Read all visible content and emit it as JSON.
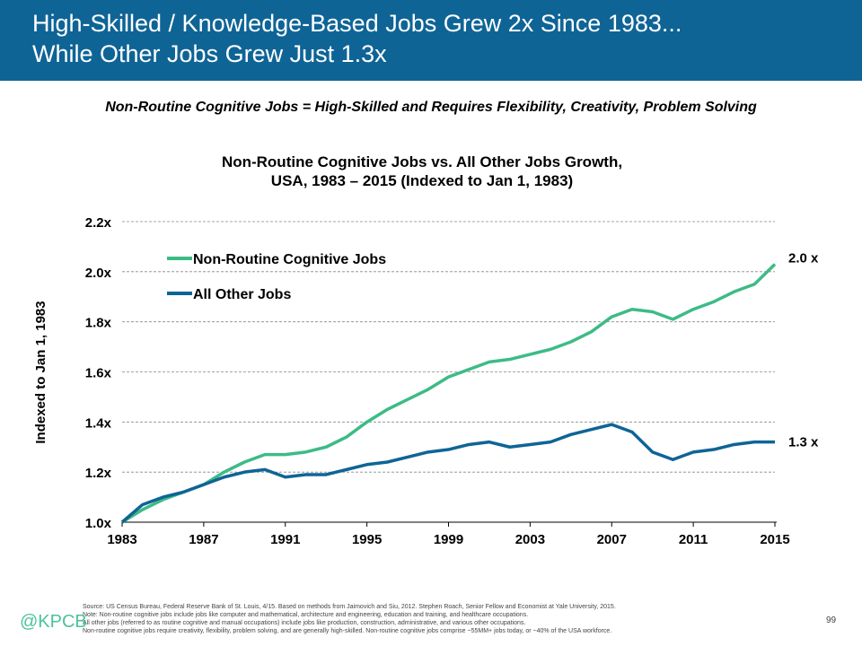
{
  "header": {
    "title_line1": "High-Skilled / Knowledge-Based Jobs Grew 2x Since 1983...",
    "title_line2": "While Other Jobs Grew Just 1.3x"
  },
  "subtitle": "Non-Routine Cognitive Jobs = High-Skilled and Requires Flexibility, Creativity, Problem Solving",
  "chart_data": {
    "type": "line",
    "title_line1": "Non-Routine Cognitive Jobs vs. All Other Jobs Growth,",
    "title_line2": "USA, 1983 – 2015 (Indexed to Jan 1, 1983)",
    "ylabel": "Indexed to Jan 1, 1983",
    "xlabel": "",
    "ylim": [
      1.0,
      2.2
    ],
    "xlim": [
      1983,
      2015
    ],
    "yticks": [
      "1.0x",
      "1.2x",
      "1.4x",
      "1.6x",
      "1.8x",
      "2.0x",
      "2.2x"
    ],
    "xticks": [
      "1983",
      "1987",
      "1991",
      "1995",
      "1999",
      "2003",
      "2007",
      "2011",
      "2015"
    ],
    "grid": true,
    "legend": "top-left",
    "x": [
      1983,
      1984,
      1985,
      1986,
      1987,
      1988,
      1989,
      1990,
      1991,
      1992,
      1993,
      1994,
      1995,
      1996,
      1997,
      1998,
      1999,
      2000,
      2001,
      2002,
      2003,
      2004,
      2005,
      2006,
      2007,
      2008,
      2009,
      2010,
      2011,
      2012,
      2013,
      2014,
      2015
    ],
    "series": [
      {
        "name": "Non-Routine Cognitive Jobs",
        "color": "#3dbb86",
        "end_label": "2.0 x",
        "values": [
          1.0,
          1.05,
          1.09,
          1.12,
          1.15,
          1.2,
          1.24,
          1.27,
          1.27,
          1.28,
          1.3,
          1.34,
          1.4,
          1.45,
          1.49,
          1.53,
          1.58,
          1.61,
          1.64,
          1.65,
          1.67,
          1.69,
          1.72,
          1.76,
          1.82,
          1.85,
          1.84,
          1.81,
          1.85,
          1.88,
          1.92,
          1.95,
          2.03
        ]
      },
      {
        "name": "All Other Jobs",
        "color": "#0f6496",
        "end_label": "1.3 x",
        "values": [
          1.0,
          1.07,
          1.1,
          1.12,
          1.15,
          1.18,
          1.2,
          1.21,
          1.18,
          1.19,
          1.19,
          1.21,
          1.23,
          1.24,
          1.26,
          1.28,
          1.29,
          1.31,
          1.32,
          1.3,
          1.31,
          1.32,
          1.35,
          1.37,
          1.39,
          1.36,
          1.28,
          1.25,
          1.28,
          1.29,
          1.31,
          1.32,
          1.32
        ]
      }
    ]
  },
  "footer": {
    "lines": [
      "Source: US Census Bureau, Federal Reserve Bank of St. Louis, 4/15. Based on methods from Jaimovich and Siu, 2012. Stephen Roach, Senior Fellow and Economist at Yale University, 2015.",
      "Note: Non-routine cognitive jobs include  jobs like computer and mathematical, architecture and engineering, education and training, and healthcare occupations.",
      "All other jobs (referred to as routine cognitive and manual occupations) include jobs like production, construction, administrative, and various other occupations.",
      "Non-routine cognitive jobs require creativity, flexibility, problem solving, and are generally high-skilled. Non-routine cognitive jobs comprise ~55MM+ jobs today, or ~40% of the USA workforce."
    ],
    "logo": "@KPCB",
    "page_number": "99"
  }
}
